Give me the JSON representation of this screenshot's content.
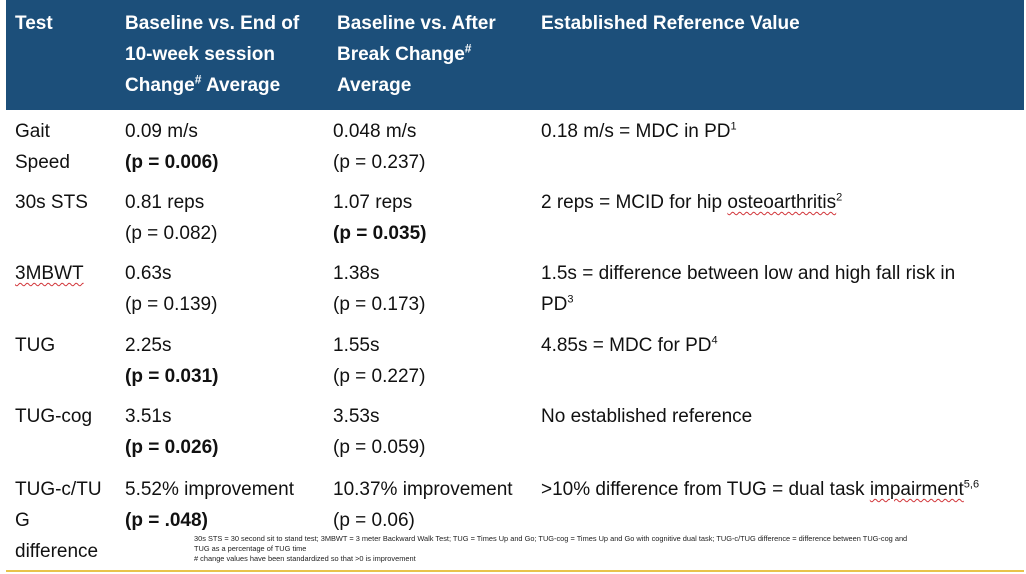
{
  "header": {
    "col_test": "Test",
    "col_end_line1": "Baseline vs. End of",
    "col_end_line2": "10-week session",
    "col_end_line3_a": "Change",
    "col_end_line3_sup": "#",
    "col_end_line3_b": " Average",
    "col_break_line1": "Baseline vs. After",
    "col_break_line2_a": "Break Change",
    "col_break_line2_sup": "#",
    "col_break_line3": "Average",
    "col_ref": "Established Reference Value"
  },
  "rows": [
    {
      "test_line1": "Gait",
      "test_line2": "Speed",
      "end_value": "0.09 m/s",
      "end_p": "(p = 0.006)",
      "break_value": "0.048 m/s",
      "break_p": "(p = 0.237)",
      "ref_text": "0.18 m/s = MDC in PD",
      "ref_sup": "1"
    },
    {
      "test_line1": "30s STS",
      "end_value": "0.81 reps",
      "end_p": "(p = 0.082)",
      "break_value": "1.07 reps",
      "break_p": "(p = 0.035)",
      "ref_text_a": "2 reps = MCID for hip ",
      "ref_text_b": "osteoarthritis",
      "ref_sup": "2"
    },
    {
      "test_line1": "3MBWT",
      "end_value": "0.63s",
      "end_p": "(p = 0.139)",
      "break_value": "1.38s",
      "break_p": "(p = 0.173)",
      "ref_line1": "1.5s = difference  between low and high fall risk in",
      "ref_line2": "PD",
      "ref_sup": "3"
    },
    {
      "test_line1": "TUG",
      "end_value": "2.25s",
      "end_p": "(p = 0.031)",
      "break_value": "1.55s",
      "break_p": "(p = 0.227)",
      "ref_text": "4.85s = MDC for PD",
      "ref_sup": "4"
    },
    {
      "test_line1": "TUG-cog",
      "end_value": "3.51s",
      "end_p": "(p = 0.026)",
      "break_value": "3.53s",
      "break_p": "(p = 0.059)",
      "ref_text": "No established reference"
    },
    {
      "test_line1": "TUG-c/TU",
      "test_line2": "G",
      "test_line3": "difference",
      "end_value": "5.52% improvement",
      "end_p": "(p = .048)",
      "break_value": "10.37% improvement",
      "break_p": "(p = 0.06)",
      "ref_text_a": ">10% difference from TUG = dual task ",
      "ref_text_b": "impairment",
      "ref_sup": "5,6"
    }
  ],
  "footnote": {
    "line1": "30s STS = 30 second sit to stand test; 3MBWT = 3 meter Backward Walk Test; TUG = Times Up and Go; TUG-cog = Times Up and Go with cognitive dual task; TUG-c/TUG difference = difference between TUG-cog and",
    "line2": "TUG as a percentage of TUG time",
    "line3": "# change values have been standardized so that >0 is improvement"
  }
}
